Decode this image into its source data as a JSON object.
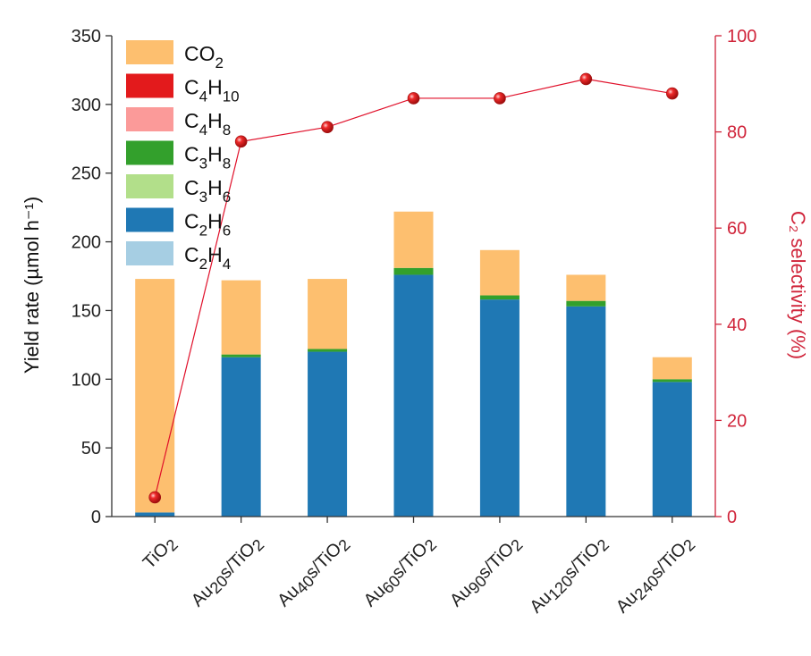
{
  "chart_data": {
    "type": "bar",
    "categories": [
      "TiO2",
      "Au20s/TiO2",
      "Au40s/TiO2",
      "Au60s/TiO2",
      "Au90s/TiO2",
      "Au120s/TiO2",
      "Au240s/TiO2"
    ],
    "series": [
      {
        "name": "C2H4",
        "color": "#a6cee3",
        "values": [
          0,
          0,
          0,
          0,
          0,
          0,
          0
        ]
      },
      {
        "name": "C2H6",
        "color": "#1f78b4",
        "values": [
          3,
          116,
          120,
          176,
          158,
          153,
          98
        ]
      },
      {
        "name": "C3H6",
        "color": "#b2df8a",
        "values": [
          0,
          0,
          0,
          0,
          0,
          0,
          0
        ]
      },
      {
        "name": "C3H8",
        "color": "#33a02c",
        "values": [
          0,
          2,
          2,
          5,
          3,
          4,
          2
        ]
      },
      {
        "name": "C4H8",
        "color": "#fb9a99",
        "values": [
          0,
          0,
          0,
          0,
          0,
          0,
          0
        ]
      },
      {
        "name": "C4H10",
        "color": "#e31a1c",
        "values": [
          0,
          0,
          0,
          0,
          0,
          0,
          0
        ]
      },
      {
        "name": "CO2",
        "color": "#fdbf6f",
        "values": [
          170,
          54,
          51,
          41,
          33,
          19,
          16
        ]
      }
    ],
    "selectivity": {
      "color": "#e0102a",
      "values": [
        4,
        78,
        81,
        87,
        87,
        91,
        88
      ]
    },
    "ylabel": "Yield rate (µmol h⁻¹)",
    "y2label": "C₂ selectivity (%)",
    "ylim": [
      0,
      350
    ],
    "y2lim": [
      0,
      100
    ],
    "yticks": [
      0,
      50,
      100,
      150,
      200,
      250,
      300,
      350
    ],
    "y2ticks": [
      0,
      20,
      40,
      60,
      80,
      100
    ],
    "legend_position": "top-left",
    "grid": false
  }
}
